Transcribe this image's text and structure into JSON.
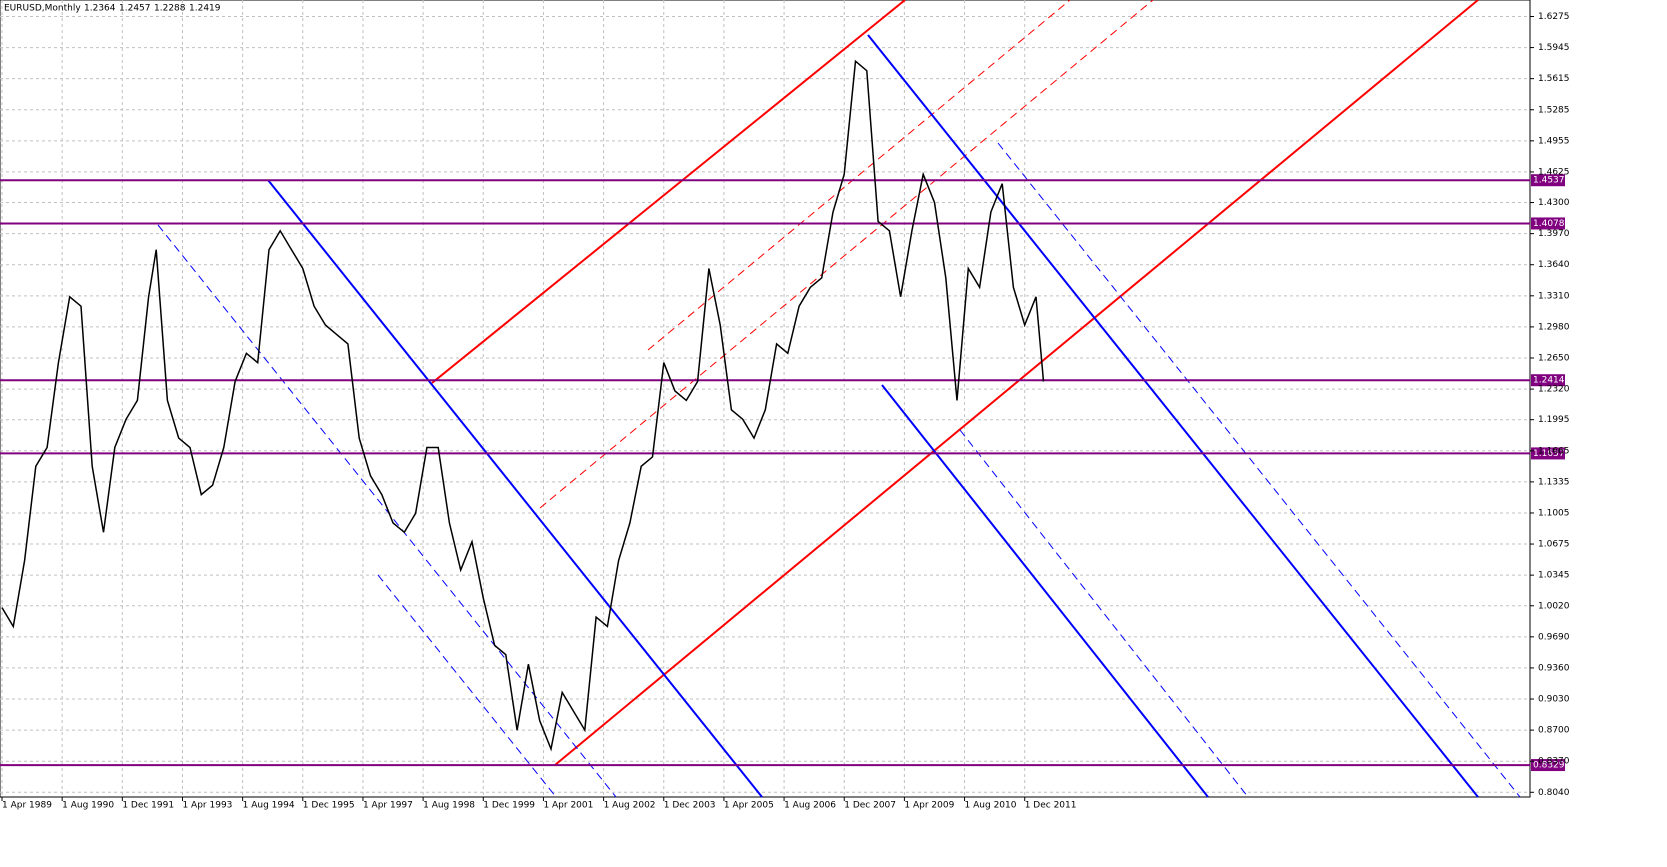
{
  "chart_data": {
    "type": "line",
    "symbol": "EURUSD,Monthly",
    "ohlc": [
      1.2364,
      1.2457,
      1.2288,
      1.2419
    ],
    "color": "#000000",
    "grid": true,
    "ylim": [
      0.799,
      1.645
    ],
    "yticks": [
      1.6275,
      1.5945,
      1.5615,
      1.5285,
      1.4955,
      1.4625,
      {
        "value": 1.43,
        "label": "1.4300"
      },
      {
        "value": 1.397,
        "label": "1.3970"
      },
      {
        "value": 1.364,
        "label": "1.3640"
      },
      {
        "value": 1.331,
        "label": "1.3310"
      },
      {
        "value": 1.298,
        "label": "1.2980"
      },
      {
        "value": 1.265,
        "label": "1.2650"
      },
      {
        "value": 1.232,
        "label": "1.2320"
      },
      1.1995,
      1.1665,
      1.1335,
      1.1005,
      1.0675,
      1.0345,
      {
        "value": 1.002,
        "label": "1.0020"
      },
      {
        "value": 0.969,
        "label": "0.9690"
      },
      {
        "value": 0.936,
        "label": "0.9360"
      },
      {
        "value": 0.903,
        "label": "0.9030"
      },
      {
        "value": 0.87,
        "label": "0.8700"
      },
      {
        "value": 0.837,
        "label": "0.8370"
      },
      {
        "value": 0.804,
        "label": "0.8040"
      }
    ],
    "xticks": [
      "1 Apr 1989",
      "1 Aug 1990",
      "1 Dec 1991",
      "1 Apr 1993",
      "1 Aug 1994",
      "1 Dec 1995",
      "1 Apr 1997",
      "1 Aug 1998",
      "1 Dec 1999",
      "1 Apr 2001",
      "1 Aug 2002",
      "1 Dec 2003",
      "1 Apr 2005",
      "1 Aug 2006",
      "1 Dec 2007",
      "1 Apr 2009",
      "1 Aug 2010",
      "1 Dec 2011"
    ],
    "levels": [
      1.4537,
      1.4078,
      1.2414,
      1.1637,
      0.8329
    ],
    "level_color": "#800080",
    "x": [
      "1 Apr 1989",
      "1 Jul 1989",
      "1 Oct 1989",
      "1 Jan 1990",
      "1 Apr 1990",
      "1 Jul 1990",
      "1 Oct 1990",
      "1 Jan 1991",
      "1 Apr 1991",
      "1 Jul 1991",
      "1 Oct 1991",
      "1 Jan 1992",
      "1 Apr 1992",
      "1 Jul 1992",
      "1 Sep 1992",
      "1 Dec 1992",
      "1 Mar 1993",
      "1 Jun 1993",
      "1 Sep 1993",
      "1 Dec 1993",
      "1 Mar 1994",
      "1 Jun 1994",
      "1 Sep 1994",
      "1 Dec 1994",
      "1 Mar 1995",
      "1 Jun 1995",
      "1 Sep 1995",
      "1 Dec 1995",
      "1 Mar 1996",
      "1 Jun 1996",
      "1 Sep 1996",
      "1 Dec 1996",
      "1 Mar 1997",
      "1 Jun 1997",
      "1 Sep 1997",
      "1 Dec 1997",
      "1 Mar 1998",
      "1 Jun 1998",
      "1 Sep 1998",
      "1 Dec 1998",
      "1 Mar 1999",
      "1 Jun 1999",
      "1 Sep 1999",
      "1 Dec 1999",
      "1 Mar 2000",
      "1 Jun 2000",
      "1 Sep 2000",
      "1 Dec 2000",
      "1 Mar 2001",
      "1 Jun 2001",
      "1 Sep 2001",
      "1 Dec 2001",
      "1 Mar 2002",
      "1 Jun 2002",
      "1 Sep 2002",
      "1 Dec 2002",
      "1 Mar 2003",
      "1 Jun 2003",
      "1 Sep 2003",
      "1 Dec 2003",
      "1 Mar 2004",
      "1 Jun 2004",
      "1 Sep 2004",
      "1 Dec 2004",
      "1 Mar 2005",
      "1 Jun 2005",
      "1 Sep 2005",
      "1 Dec 2005",
      "1 Mar 2006",
      "1 Jun 2006",
      "1 Sep 2006",
      "1 Dec 2006",
      "1 Mar 2007",
      "1 Jun 2007",
      "1 Sep 2007",
      "1 Dec 2007",
      "1 Mar 2008",
      "1 Jun 2008",
      "1 Sep 2008",
      "1 Dec 2008",
      "1 Mar 2009",
      "1 Jun 2009",
      "1 Sep 2009",
      "1 Dec 2009",
      "1 Mar 2010",
      "1 Jun 2010",
      "1 Sep 2010",
      "1 Dec 2010",
      "1 Mar 2011",
      "1 Jun 2011",
      "1 Sep 2011",
      "1 Dec 2011",
      "1 Mar 2012",
      "1 May 2012"
    ],
    "values": [
      1.0,
      0.98,
      1.05,
      1.15,
      1.17,
      1.26,
      1.33,
      1.32,
      1.15,
      1.08,
      1.17,
      1.2,
      1.22,
      1.33,
      1.38,
      1.22,
      1.18,
      1.17,
      1.12,
      1.13,
      1.17,
      1.24,
      1.27,
      1.26,
      1.38,
      1.4,
      1.38,
      1.36,
      1.32,
      1.3,
      1.29,
      1.28,
      1.18,
      1.14,
      1.12,
      1.09,
      1.08,
      1.1,
      1.17,
      1.17,
      1.09,
      1.04,
      1.07,
      1.01,
      0.96,
      0.95,
      0.87,
      0.94,
      0.88,
      0.85,
      0.91,
      0.89,
      0.87,
      0.99,
      0.98,
      1.05,
      1.09,
      1.15,
      1.16,
      1.26,
      1.23,
      1.22,
      1.24,
      1.36,
      1.3,
      1.21,
      1.2,
      1.18,
      1.21,
      1.28,
      1.27,
      1.32,
      1.34,
      1.35,
      1.42,
      1.46,
      1.58,
      1.57,
      1.41,
      1.4,
      1.33,
      1.4,
      1.46,
      1.43,
      1.35,
      1.22,
      1.36,
      1.34,
      1.42,
      1.45,
      1.34,
      1.3,
      1.33,
      1.24
    ]
  }
}
